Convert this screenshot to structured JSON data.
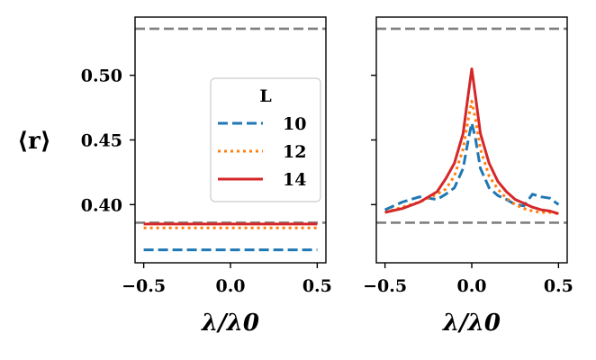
{
  "chart_data": [
    {
      "type": "line",
      "panel": "left",
      "x_range": [
        -0.5,
        0.5
      ],
      "xlim": [
        -0.55,
        0.55
      ],
      "ylim": [
        0.355,
        0.545
      ],
      "x_ticks": [
        -0.5,
        0.0,
        0.5
      ],
      "x_tick_labels": [
        "−0.5",
        "0.0",
        "0.5"
      ],
      "y_ticks": [
        0.4,
        0.45,
        0.5
      ],
      "y_tick_labels": [
        "0.40",
        "0.45",
        "0.50"
      ],
      "xlabel": "λ/λ0",
      "ylabel": "⟨r⟩",
      "reference_lines": [
        {
          "name": "goe",
          "y": 0.536
        },
        {
          "name": "poisson",
          "y": 0.386
        }
      ],
      "series": [
        {
          "name": "10",
          "color": "#1f77b4",
          "dash": "dashed",
          "flat_value": 0.365
        },
        {
          "name": "12",
          "color": "#ff7f0e",
          "dash": "dotted",
          "flat_value": 0.382
        },
        {
          "name": "14",
          "color": "#d62728",
          "dash": "solid",
          "flat_value": 0.385
        }
      ],
      "legend": {
        "title": "L",
        "position": "center-right",
        "entries": [
          "10",
          "12",
          "14"
        ]
      }
    },
    {
      "type": "line",
      "panel": "right",
      "xlim": [
        -0.55,
        0.55
      ],
      "ylim": [
        0.355,
        0.545
      ],
      "x_ticks": [
        -0.5,
        0.0,
        0.5
      ],
      "x_tick_labels": [
        "−0.5",
        "0.0",
        "0.5"
      ],
      "y_ticks": [
        0.4,
        0.45,
        0.5
      ],
      "xlabel": "λ/λ0",
      "reference_lines": [
        {
          "name": "goe",
          "y": 0.536
        },
        {
          "name": "poisson",
          "y": 0.386
        }
      ],
      "series": [
        {
          "name": "10",
          "color": "#1f77b4",
          "dash": "dashed",
          "x": [
            -0.5,
            -0.4,
            -0.3,
            -0.2,
            -0.15,
            -0.1,
            -0.05,
            -0.02,
            0.0,
            0.02,
            0.05,
            0.1,
            0.15,
            0.2,
            0.25,
            0.3,
            0.35,
            0.4,
            0.45,
            0.5
          ],
          "y": [
            0.396,
            0.402,
            0.406,
            0.404,
            0.408,
            0.413,
            0.428,
            0.45,
            0.463,
            0.452,
            0.428,
            0.413,
            0.407,
            0.404,
            0.4,
            0.399,
            0.408,
            0.406,
            0.405,
            0.4
          ]
        },
        {
          "name": "12",
          "color": "#ff7f0e",
          "dash": "dotted",
          "x": [
            -0.5,
            -0.4,
            -0.3,
            -0.2,
            -0.15,
            -0.1,
            -0.05,
            -0.02,
            0.0,
            0.02,
            0.05,
            0.1,
            0.15,
            0.2,
            0.25,
            0.3,
            0.35,
            0.4,
            0.45,
            0.5
          ],
          "y": [
            0.394,
            0.398,
            0.402,
            0.408,
            0.412,
            0.422,
            0.443,
            0.466,
            0.48,
            0.467,
            0.443,
            0.422,
            0.412,
            0.405,
            0.4,
            0.397,
            0.395,
            0.394,
            0.394,
            0.393
          ]
        },
        {
          "name": "14",
          "color": "#d62728",
          "dash": "solid",
          "x": [
            -0.5,
            -0.4,
            -0.3,
            -0.2,
            -0.15,
            -0.1,
            -0.05,
            -0.02,
            0.0,
            0.02,
            0.05,
            0.1,
            0.15,
            0.2,
            0.25,
            0.3,
            0.35,
            0.4,
            0.45,
            0.5
          ],
          "y": [
            0.394,
            0.397,
            0.402,
            0.41,
            0.42,
            0.432,
            0.455,
            0.485,
            0.505,
            0.485,
            0.455,
            0.432,
            0.418,
            0.41,
            0.404,
            0.401,
            0.398,
            0.396,
            0.395,
            0.393
          ]
        }
      ]
    }
  ]
}
